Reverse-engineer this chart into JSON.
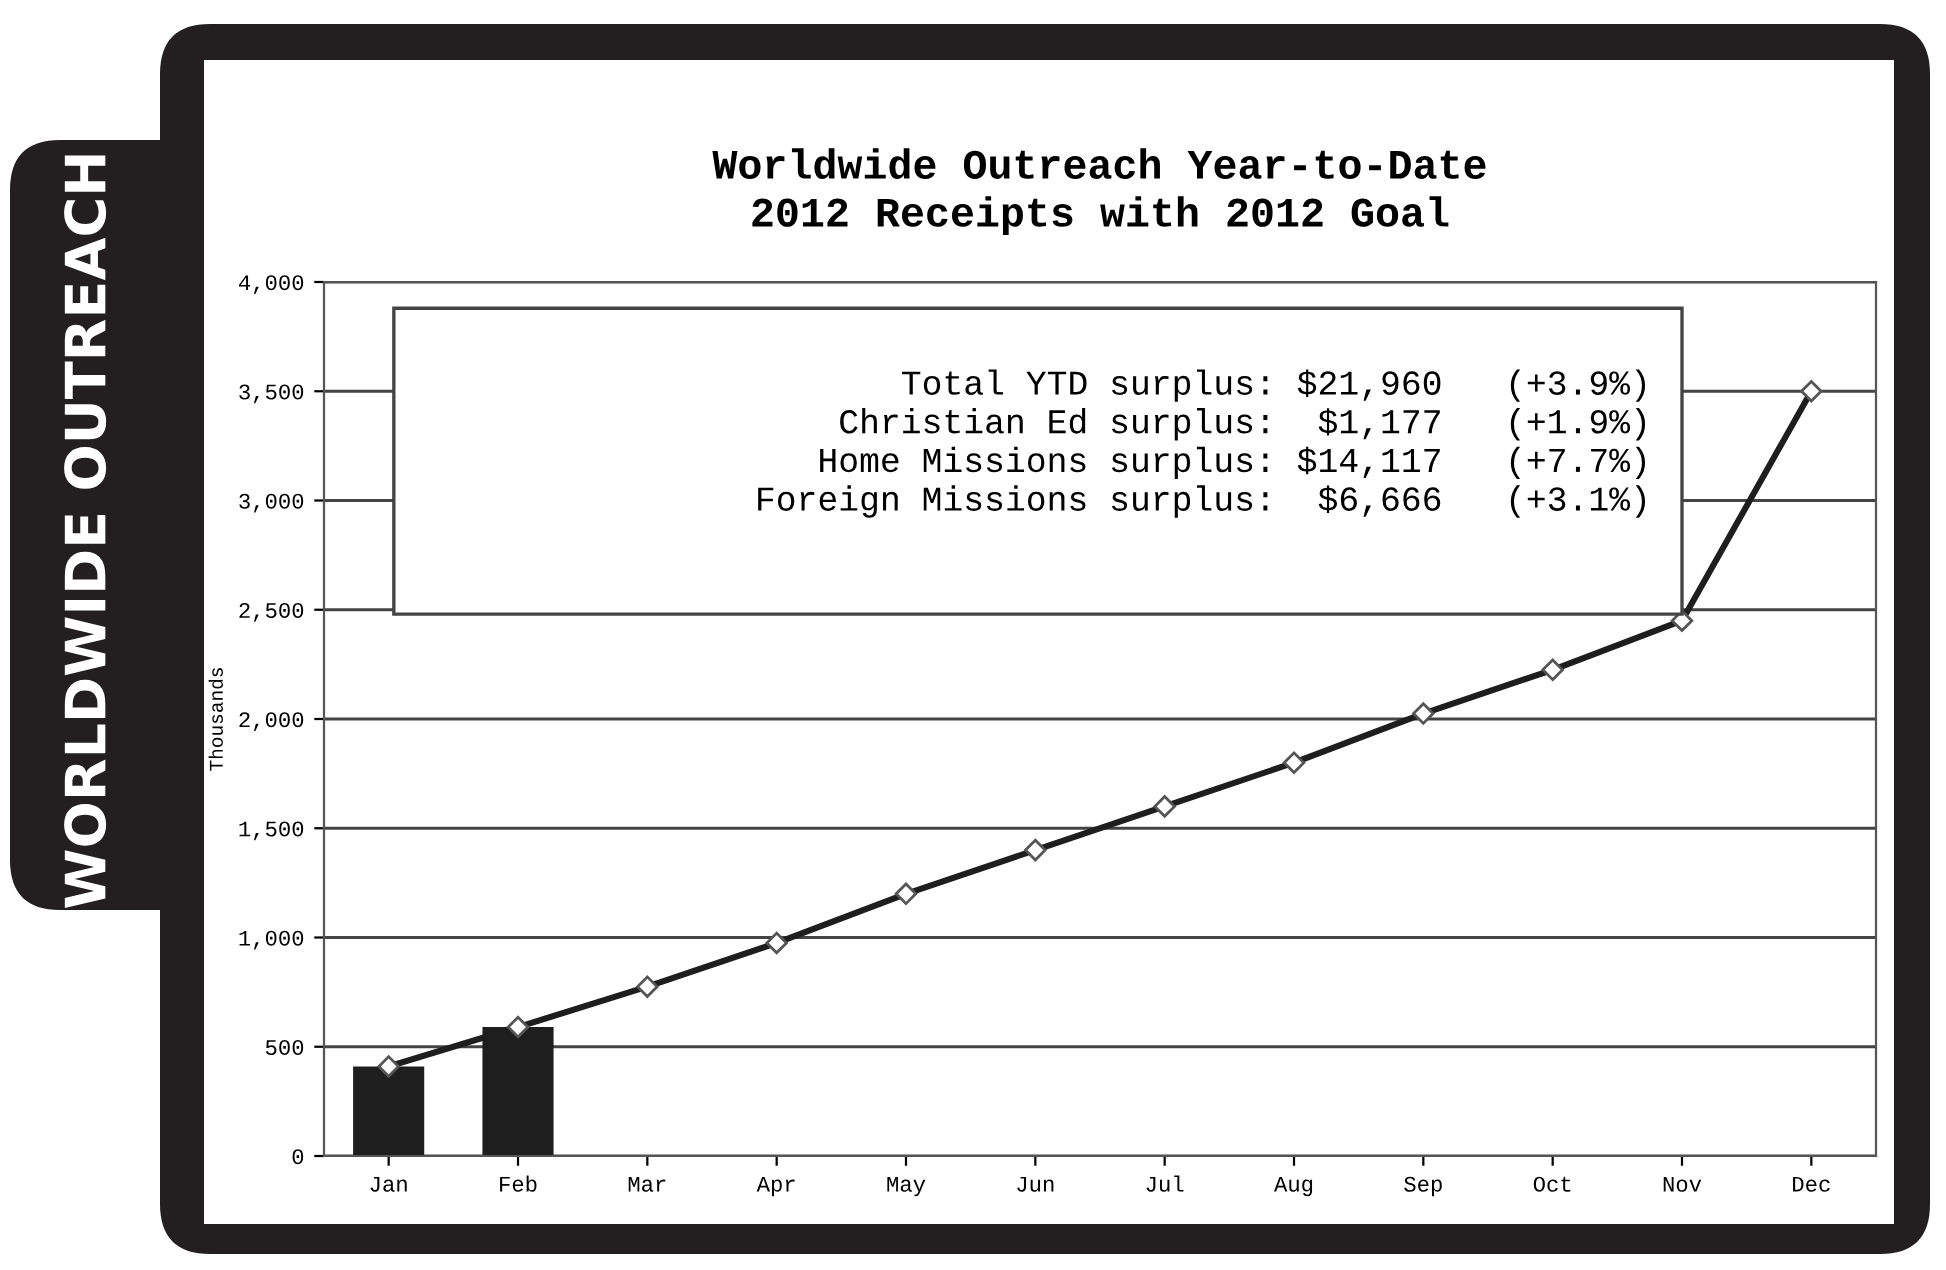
{
  "chart_data": {
    "type": "bar",
    "title": "Worldwide Outreach Year-to-Date\n2012 Receipts with 2012 Goal",
    "ylabel": "Thousands",
    "categories": [
      "Jan",
      "Feb",
      "Mar",
      "Apr",
      "May",
      "Jun",
      "Jul",
      "Aug",
      "Sep",
      "Oct",
      "Nov",
      "Dec"
    ],
    "series": [
      {
        "color": "#1e1e1e",
        "values": [
          410,
          590,
          null,
          null,
          null,
          null,
          null,
          null,
          null,
          null,
          null,
          null
        ]
      },
      {
        "type": "line",
        "color": "#1e1e1e",
        "marker": "diamond",
        "line_style": "solid",
        "values": [
          410,
          590,
          775,
          975,
          1200,
          1400,
          1600,
          1800,
          2025,
          2225,
          2450,
          3500
        ]
      }
    ],
    "ylim": [
      0,
      4000
    ],
    "yticks": [
      {
        "value": 0,
        "label": "0"
      },
      {
        "value": 500,
        "label": "500"
      },
      {
        "value": 1000,
        "label": "1,000"
      },
      {
        "value": 1500,
        "label": "1,500"
      },
      {
        "value": 2000,
        "label": "2,000"
      },
      {
        "value": 2500,
        "label": "2,500"
      },
      {
        "value": 3000,
        "label": "3,000"
      },
      {
        "value": 3500,
        "label": "3,500"
      },
      {
        "value": 4000,
        "label": "4,000"
      }
    ],
    "grid": "y",
    "legend": false,
    "annotations": [
      "WORLDWIDE OUTREACH",
      "Total YTD surplus: $21,960   (+3.9%)",
      "Christian Ed surplus:  $1,177   (+1.9%)",
      "Home Missions surplus: $14,117   (+7.7%)",
      "Foreign Missions surplus:  $6,666   (+3.1%)"
    ]
  }
}
